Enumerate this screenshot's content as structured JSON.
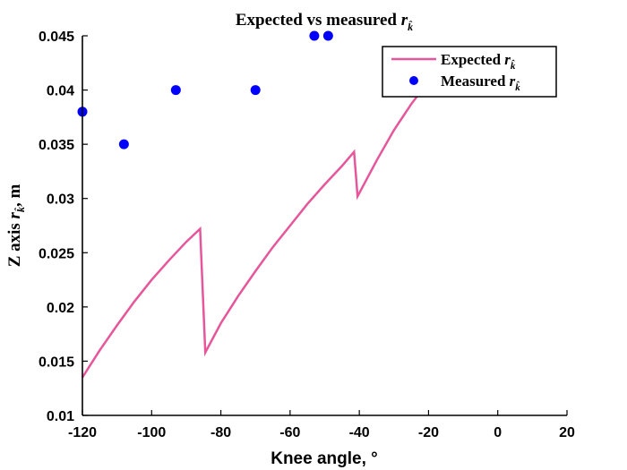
{
  "chart_data": {
    "type": "line",
    "title": {
      "prefix": "Expected vs measured ",
      "var": "r",
      "sub": "k̂"
    },
    "xlabel": "Knee angle, °",
    "ylabel": {
      "prefix": "Z axis ",
      "var": "r",
      "sub": "k̂",
      "suffix": ", m"
    },
    "xlim": [
      -120,
      20
    ],
    "ylim": [
      0.01,
      0.045
    ],
    "xticks": [
      -120,
      -100,
      -80,
      -60,
      -40,
      -20,
      0,
      20
    ],
    "yticks": [
      0.01,
      0.015,
      0.02,
      0.025,
      0.03,
      0.035,
      0.04,
      0.045
    ],
    "xtick_labels": [
      "-120",
      "-100",
      "-80",
      "-60",
      "-40",
      "-20",
      "0",
      "20"
    ],
    "ytick_labels": [
      "0.01",
      "0.015",
      "0.02",
      "0.025",
      "0.03",
      "0.035",
      "0.04",
      "0.045"
    ],
    "grid": false,
    "legend_position": "top-right",
    "series": [
      {
        "name": {
          "prefix": "Expected ",
          "var": "r",
          "sub": "k̂"
        },
        "kind": "line",
        "color": "#e6569a",
        "x": [
          -120,
          -115,
          -110,
          -105,
          -100,
          -95,
          -90,
          -86,
          -84.5,
          -80,
          -75,
          -70,
          -65,
          -60,
          -55,
          -50,
          -45,
          -41.5,
          -40.5,
          -35,
          -30,
          -25,
          -20
        ],
        "y": [
          0.0135,
          0.016,
          0.0183,
          0.0205,
          0.0225,
          0.0243,
          0.026,
          0.0272,
          0.0158,
          0.0185,
          0.021,
          0.0233,
          0.0255,
          0.0275,
          0.0295,
          0.0313,
          0.033,
          0.0343,
          0.0302,
          0.0335,
          0.0363,
          0.0387,
          0.0408
        ]
      },
      {
        "name": {
          "prefix": "Measured ",
          "var": "r",
          "sub": "k̂"
        },
        "kind": "scatter",
        "color": "#0000ff",
        "x": [
          -120,
          -108,
          -93,
          -70,
          -53,
          -49
        ],
        "y": [
          0.038,
          0.035,
          0.04,
          0.04,
          0.045,
          0.045
        ]
      }
    ]
  }
}
